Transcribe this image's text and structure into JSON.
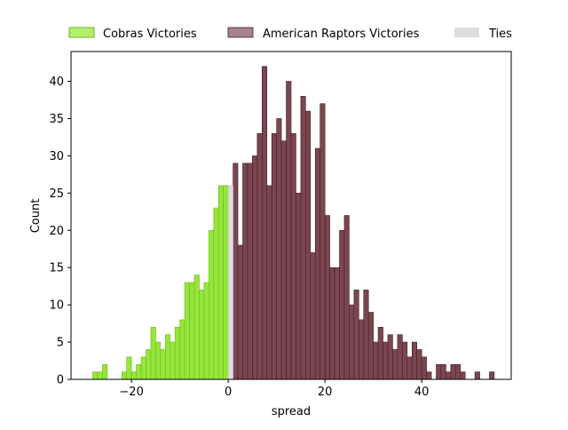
{
  "chart_data": {
    "type": "bar",
    "xlabel": "spread",
    "ylabel": "Count",
    "xlim": [
      -32.5,
      58.5
    ],
    "ylim": [
      0,
      44
    ],
    "x_ticks": [
      -20,
      0,
      20,
      40
    ],
    "y_ticks": [
      0,
      5,
      10,
      15,
      20,
      25,
      30,
      35,
      40
    ],
    "x_tick_labels": [
      "−20",
      "0",
      "20",
      "40"
    ],
    "y_tick_labels": [
      "0",
      "5",
      "10",
      "15",
      "20",
      "25",
      "30",
      "35",
      "40"
    ],
    "grid": false,
    "legend": {
      "placement": "top",
      "entries": [
        "Cobras Victories",
        "American Raptors Victories",
        "Ties"
      ]
    },
    "bin_width": 1,
    "series": [
      {
        "name": "Cobras Victories",
        "color": "#95e63a",
        "edge": "#6fb324",
        "legend_color": "#b2ef71",
        "bins": [
          {
            "x": -28,
            "y": 1
          },
          {
            "x": -27,
            "y": 1
          },
          {
            "x": -26,
            "y": 2
          },
          {
            "x": -22,
            "y": 1
          },
          {
            "x": -21,
            "y": 3
          },
          {
            "x": -20,
            "y": 1
          },
          {
            "x": -19,
            "y": 2
          },
          {
            "x": -18,
            "y": 3
          },
          {
            "x": -17,
            "y": 4
          },
          {
            "x": -16,
            "y": 7
          },
          {
            "x": -15,
            "y": 5
          },
          {
            "x": -14,
            "y": 4
          },
          {
            "x": -13,
            "y": 6
          },
          {
            "x": -12,
            "y": 5
          },
          {
            "x": -11,
            "y": 7
          },
          {
            "x": -10,
            "y": 8
          },
          {
            "x": -9,
            "y": 13
          },
          {
            "x": -8,
            "y": 13
          },
          {
            "x": -7,
            "y": 14
          },
          {
            "x": -6,
            "y": 12
          },
          {
            "x": -5,
            "y": 13
          },
          {
            "x": -4,
            "y": 20
          },
          {
            "x": -3,
            "y": 23
          },
          {
            "x": -2,
            "y": 26
          },
          {
            "x": -1,
            "y": 26
          }
        ]
      },
      {
        "name": "American Raptors Victories",
        "color": "#7b4650",
        "edge": "#3e1f25",
        "legend_color": "#a6828a",
        "bins": [
          {
            "x": 1,
            "y": 29
          },
          {
            "x": 2,
            "y": 18
          },
          {
            "x": 3,
            "y": 29
          },
          {
            "x": 4,
            "y": 29
          },
          {
            "x": 5,
            "y": 30
          },
          {
            "x": 6,
            "y": 33
          },
          {
            "x": 7,
            "y": 42
          },
          {
            "x": 8,
            "y": 26
          },
          {
            "x": 9,
            "y": 33
          },
          {
            "x": 10,
            "y": 35
          },
          {
            "x": 11,
            "y": 32
          },
          {
            "x": 12,
            "y": 40
          },
          {
            "x": 13,
            "y": 33
          },
          {
            "x": 14,
            "y": 25
          },
          {
            "x": 15,
            "y": 38
          },
          {
            "x": 16,
            "y": 36
          },
          {
            "x": 17,
            "y": 17
          },
          {
            "x": 18,
            "y": 31
          },
          {
            "x": 19,
            "y": 37
          },
          {
            "x": 20,
            "y": 22
          },
          {
            "x": 21,
            "y": 15
          },
          {
            "x": 22,
            "y": 15
          },
          {
            "x": 23,
            "y": 20
          },
          {
            "x": 24,
            "y": 22
          },
          {
            "x": 25,
            "y": 10
          },
          {
            "x": 26,
            "y": 12
          },
          {
            "x": 27,
            "y": 8
          },
          {
            "x": 28,
            "y": 12
          },
          {
            "x": 29,
            "y": 9
          },
          {
            "x": 30,
            "y": 5
          },
          {
            "x": 31,
            "y": 7
          },
          {
            "x": 32,
            "y": 5
          },
          {
            "x": 33,
            "y": 6
          },
          {
            "x": 34,
            "y": 4
          },
          {
            "x": 35,
            "y": 6
          },
          {
            "x": 36,
            "y": 5
          },
          {
            "x": 37,
            "y": 3
          },
          {
            "x": 38,
            "y": 5
          },
          {
            "x": 39,
            "y": 4
          },
          {
            "x": 40,
            "y": 3
          },
          {
            "x": 41,
            "y": 1
          },
          {
            "x": 43,
            "y": 2
          },
          {
            "x": 44,
            "y": 2
          },
          {
            "x": 45,
            "y": 1
          },
          {
            "x": 46,
            "y": 2
          },
          {
            "x": 47,
            "y": 2
          },
          {
            "x": 48,
            "y": 1
          },
          {
            "x": 51,
            "y": 1
          },
          {
            "x": 54,
            "y": 1
          }
        ]
      },
      {
        "name": "Ties",
        "color": "#dddddd",
        "edge": "#c8c8c8",
        "legend_color": "#dddddd",
        "bins": [
          {
            "x": 0,
            "y": 26
          }
        ]
      }
    ]
  }
}
